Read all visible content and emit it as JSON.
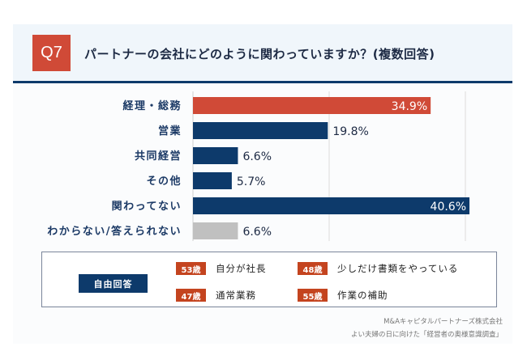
{
  "header": {
    "question_number": "Q7",
    "title": "パートナーの会社にどのように関わっていますか？(複数回答)"
  },
  "chart_data": {
    "type": "bar",
    "orientation": "horizontal",
    "title": "パートナーの会社にどのように関わっていますか？(複数回答)",
    "categories": [
      "経理・総務",
      "営業",
      "共同経営",
      "その他",
      "関わってない",
      "わからない/答えられない"
    ],
    "values": [
      34.9,
      19.8,
      6.6,
      5.7,
      40.6,
      6.6
    ],
    "value_labels": [
      "34.9%",
      "19.8%",
      "6.6%",
      "5.7%",
      "40.6%",
      "6.6%"
    ],
    "bar_colors": [
      "#d04a37",
      "#0d3a6b",
      "#0d3a6b",
      "#0d3a6b",
      "#0d3a6b",
      "#c0c0c0"
    ],
    "xlabel": "",
    "ylabel": "",
    "xlim": [
      0,
      43
    ],
    "gridlines": [
      0,
      20,
      40
    ],
    "grid": true,
    "unit": "%"
  },
  "free_answers": {
    "title": "自由回答",
    "items": [
      {
        "age": "53歳",
        "text": "自分が社長"
      },
      {
        "age": "48歳",
        "text": "少しだけ書類をやっている"
      },
      {
        "age": "47歳",
        "text": "通常業務"
      },
      {
        "age": "55歳",
        "text": "作業の補助"
      }
    ]
  },
  "source": {
    "line1": "M&Aキャピタルパートナーズ株式会社",
    "line2": "よい夫婦の日に向けた「経営者の奥様意識調査」"
  }
}
